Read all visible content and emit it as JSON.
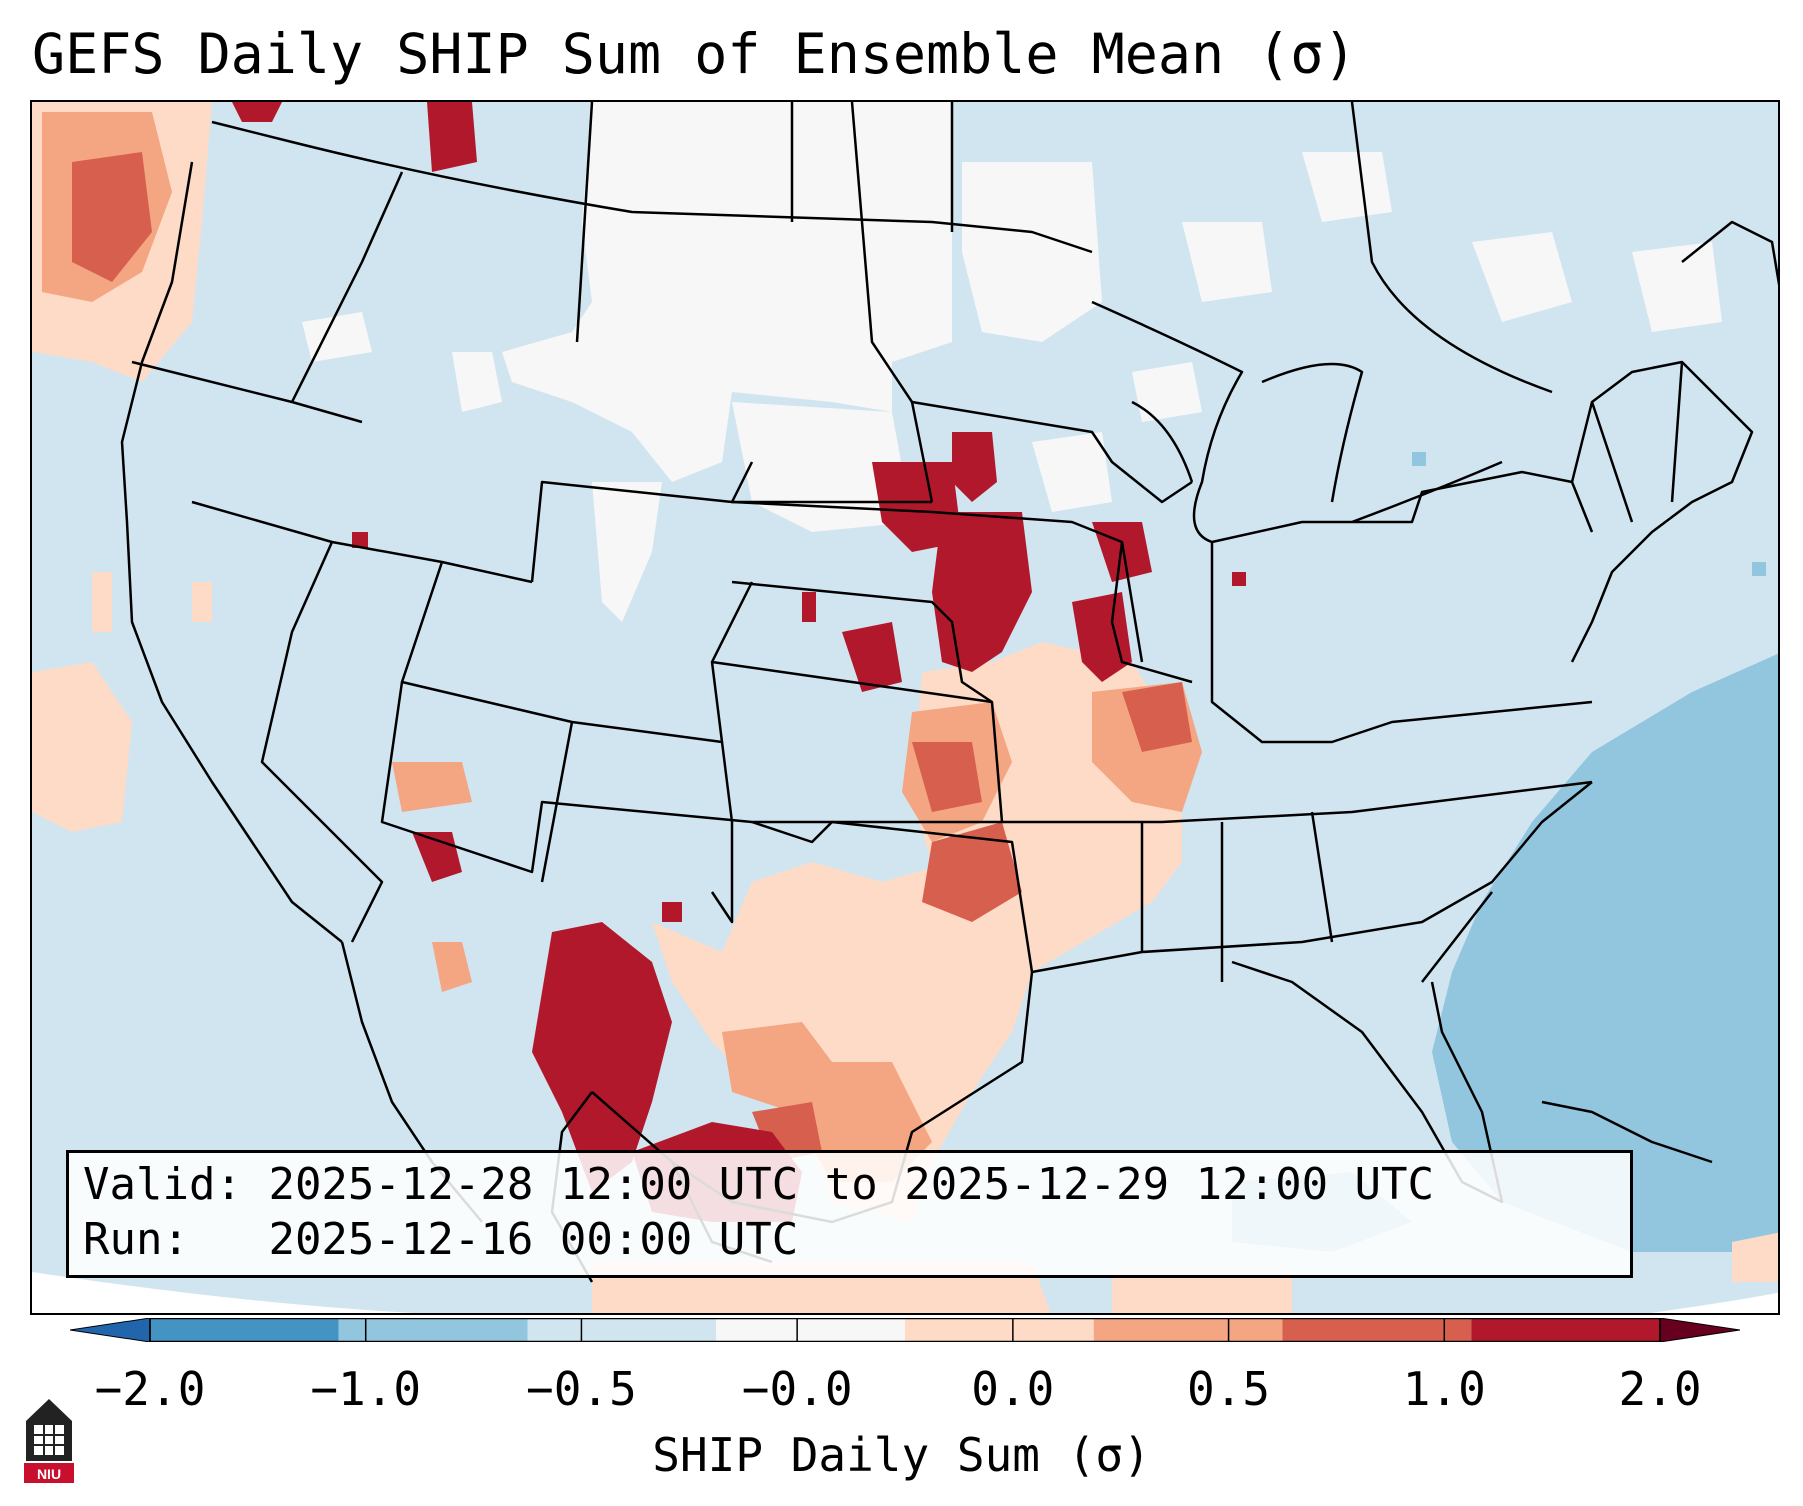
{
  "title": "GEFS Daily SHIP Sum of Ensemble Mean (σ)",
  "info": {
    "valid_label": "Valid:",
    "valid_value": "2025-12-28 12:00 UTC to 2025-12-29 12:00 UTC",
    "run_label": "Run:",
    "run_value": "2025-12-16 00:00 UTC"
  },
  "colorbar": {
    "label": "SHIP Daily Sum (σ)",
    "ticks": [
      "−2.0",
      "−1.0",
      "−0.5",
      "−0.0",
      "0.0",
      "0.5",
      "1.0",
      "2.0"
    ],
    "colors": [
      "#4393c3",
      "#92c5de",
      "#d1e5f0",
      "#f7f7f7",
      "#fddbc7",
      "#f4a582",
      "#d6604d",
      "#b2182b"
    ],
    "under_color": "#2166ac",
    "over_color": "#67001f"
  },
  "map": {
    "region": "Contiguous United States",
    "background_color": "#d1e5f0",
    "ocean_negative_color": "#92c5de",
    "boundaries": "state and country borders, coastlines"
  },
  "logo": {
    "text": "NIU",
    "icon": "niu-logo-icon"
  }
}
